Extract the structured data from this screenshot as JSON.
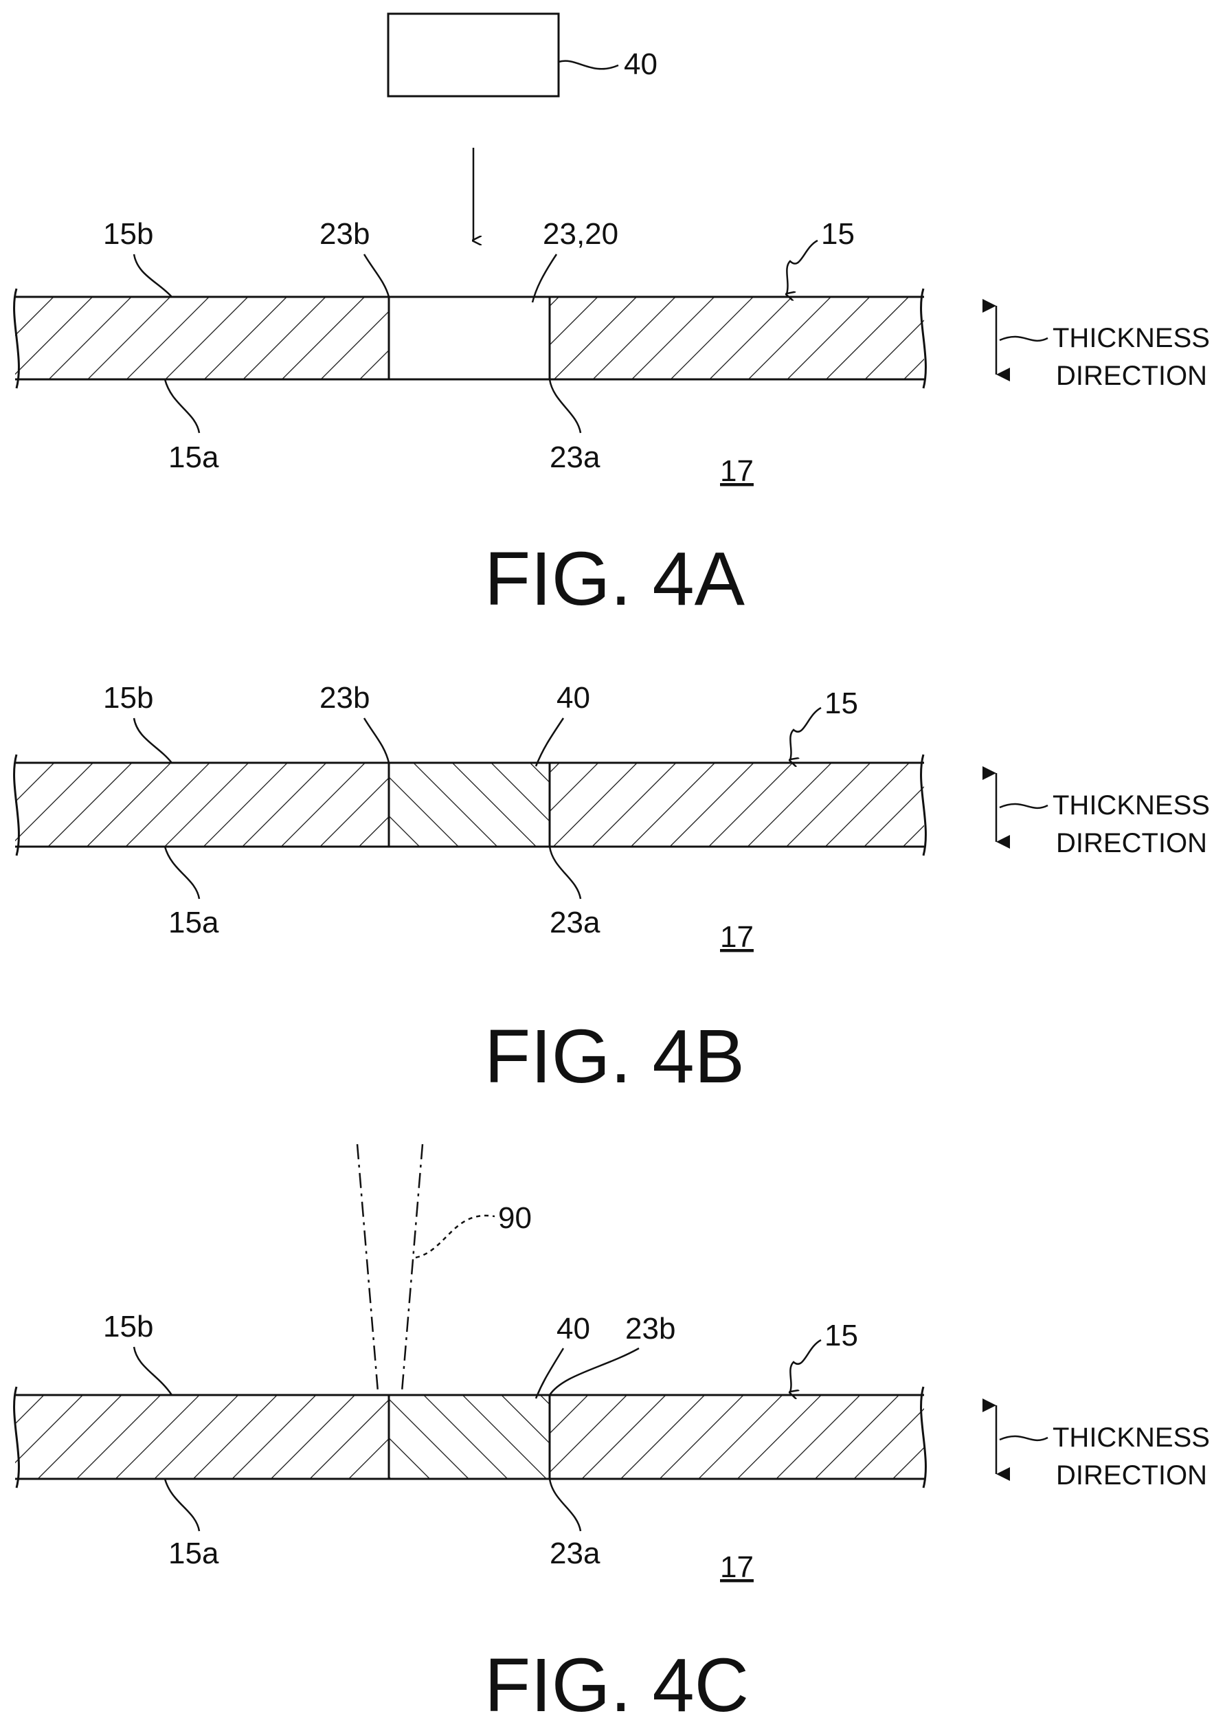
{
  "figures": [
    {
      "caption": "FIG. 4A",
      "labels": {
        "block": "40",
        "upper_surface": "15b",
        "lower_surface": "15a",
        "hole_top_edge": "23b",
        "hole": "23,20",
        "hole_bottom_edge": "23a",
        "plate": "15",
        "side": "17"
      },
      "direction": [
        "THICKNESS",
        "DIRECTION"
      ]
    },
    {
      "caption": "FIG. 4B",
      "labels": {
        "upper_surface": "15b",
        "lower_surface": "15a",
        "hole_top_edge": "23b",
        "filler": "40",
        "hole_bottom_edge": "23a",
        "plate": "15",
        "side": "17"
      },
      "direction": [
        "THICKNESS",
        "DIRECTION"
      ]
    },
    {
      "caption": "FIG. 4C",
      "labels": {
        "beam": "90",
        "upper_surface": "15b",
        "lower_surface": "15a",
        "filler": "40",
        "hole_top_edge": "23b",
        "hole_bottom_edge": "23a",
        "plate": "15",
        "side": "17"
      },
      "direction": [
        "THICKNESS",
        "DIRECTION"
      ]
    }
  ]
}
